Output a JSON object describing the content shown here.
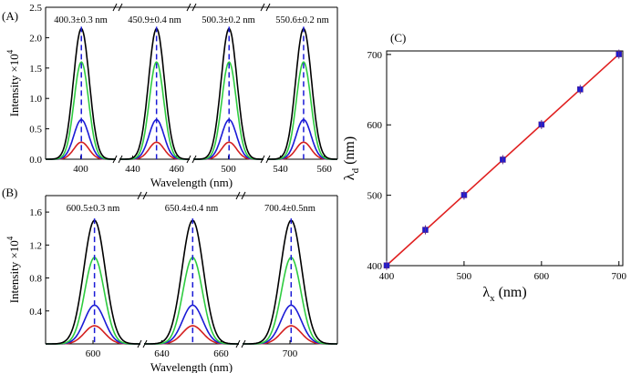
{
  "chart_data": [
    {
      "panel": "(A)",
      "type": "line",
      "ylabel": "Intensity ×10",
      "ylabel_sup": "4",
      "xlabel": "Wavelength (nm)",
      "ylim": [
        0,
        2.5
      ],
      "yticks": [
        "0.0",
        "0.5",
        "1.0",
        "1.5",
        "2.0",
        "2.5"
      ],
      "segments": [
        {
          "xlim": [
            384,
            416
          ],
          "xticks": [
            "400"
          ],
          "center": 400.3,
          "label": "400.3±0.3 nm"
        },
        {
          "xlim": [
            434,
            466
          ],
          "xticks": [
            "440",
            "460"
          ],
          "center": 450.9,
          "label": "450.9±0.4 nm"
        },
        {
          "xlim": [
            484,
            516
          ],
          "xticks": [
            "500"
          ],
          "center": 500.3,
          "label": "500.3±0.2 nm"
        },
        {
          "xlim": [
            534,
            566
          ],
          "xticks": [
            "540",
            "560"
          ],
          "center": 550.6,
          "label": "550.6±0.2 nm"
        }
      ],
      "series": [
        {
          "name": "black",
          "color": "#000000",
          "peak": 2.15,
          "sigma": 3.6
        },
        {
          "name": "green",
          "color": "#2ecc40",
          "peak": 1.6,
          "sigma": 3.3
        },
        {
          "name": "blue",
          "color": "#1a1ad6",
          "peak": 0.65,
          "sigma": 3.4
        },
        {
          "name": "red",
          "color": "#d42020",
          "peak": 0.28,
          "sigma": 3.4
        }
      ]
    },
    {
      "panel": "(B)",
      "type": "line",
      "ylabel": "Intensity ×10",
      "ylabel_sup": "4",
      "xlabel": "Wavelength (nm)",
      "ylim": [
        0,
        1.8
      ],
      "yticks": [
        "0.4",
        "0.8",
        "1.2",
        "1.6"
      ],
      "segments": [
        {
          "xlim": [
            584,
            616
          ],
          "xticks": [
            "600"
          ],
          "center": 600.5,
          "label": "600.5±0.3 nm"
        },
        {
          "xlim": [
            634,
            666
          ],
          "xticks": [
            "640",
            "660"
          ],
          "center": 650.4,
          "label": "650.4±0.4 nm"
        },
        {
          "xlim": [
            684,
            716
          ],
          "xticks": [
            "700"
          ],
          "center": 700.4,
          "label": "700.4±0.5nm"
        }
      ],
      "series": [
        {
          "name": "black",
          "color": "#000000",
          "peak": 1.5,
          "sigma": 3.6
        },
        {
          "name": "green",
          "color": "#2ecc40",
          "peak": 1.05,
          "sigma": 3.3
        },
        {
          "name": "blue",
          "color": "#1a1ad6",
          "peak": 0.47,
          "sigma": 3.4
        },
        {
          "name": "red",
          "color": "#d42020",
          "peak": 0.22,
          "sigma": 3.4
        }
      ]
    },
    {
      "panel": "(C)",
      "type": "scatter",
      "xlabel": "λ",
      "xlabel_sub": "x",
      "xlabel_unit": " (nm)",
      "ylabel": "λ",
      "ylabel_sub": "d",
      "ylabel_unit": " (nm)",
      "xlim": [
        400,
        705
      ],
      "ylim": [
        400,
        705
      ],
      "xticks": [
        400,
        500,
        600,
        700
      ],
      "yticks": [
        400,
        500,
        600,
        700
      ],
      "x": [
        400,
        450,
        500,
        550,
        600,
        650,
        700
      ],
      "y": [
        400.3,
        450.9,
        500.3,
        550.6,
        600.5,
        650.4,
        700.4
      ],
      "point_color": "#1a1ad6",
      "fit_color": "#e02020"
    }
  ]
}
